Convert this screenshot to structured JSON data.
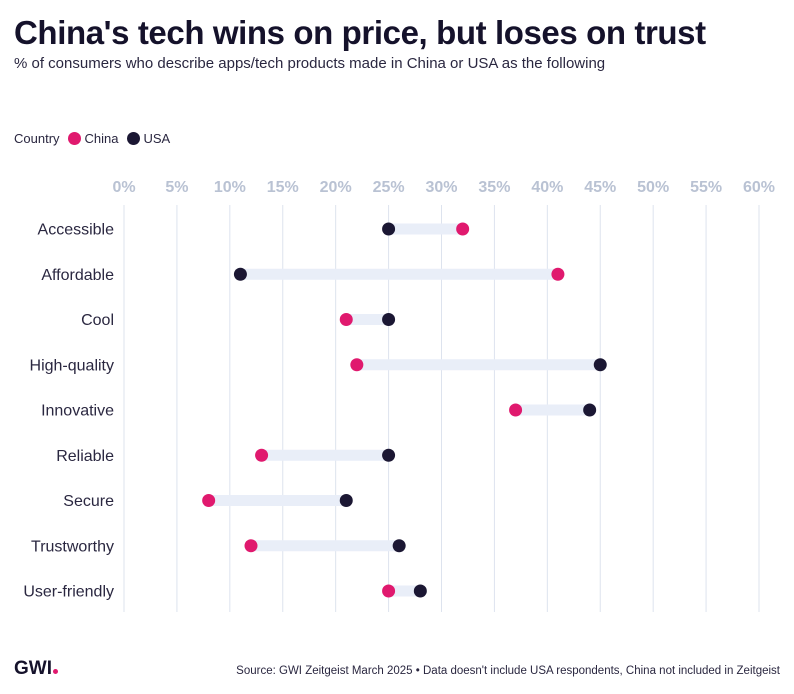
{
  "header": {
    "title": "China's tech wins on price, but loses on trust",
    "subtitle": "% of consumers who describe apps/tech products made in China or USA as the following"
  },
  "legend": {
    "label": "Country",
    "items": [
      {
        "name": "China",
        "color": "#e0196e"
      },
      {
        "name": "USA",
        "color": "#1b1733"
      }
    ]
  },
  "chart_data": {
    "type": "dumbbell",
    "title": "China's tech wins on price, but loses on trust",
    "xlabel": "",
    "ylabel": "",
    "xlim": [
      0,
      60
    ],
    "xticks": [
      "0%",
      "5%",
      "10%",
      "15%",
      "20%",
      "25%",
      "30%",
      "35%",
      "40%",
      "45%",
      "50%",
      "55%",
      "60%"
    ],
    "grid": true,
    "categories": [
      "Accessible",
      "Affordable",
      "Cool",
      "High-quality",
      "Innovative",
      "Reliable",
      "Secure",
      "Trustworthy",
      "User-friendly"
    ],
    "series": [
      {
        "name": "China",
        "color": "#e0196e",
        "values": [
          32,
          41,
          21,
          22,
          37,
          13,
          8,
          12,
          25
        ]
      },
      {
        "name": "USA",
        "color": "#1b1733",
        "values": [
          25,
          11,
          25,
          45,
          44,
          25,
          21,
          26,
          28
        ]
      }
    ],
    "range_color": "#e9eef8"
  },
  "footer": {
    "logo": "GWI",
    "source": "Source: GWI Zeitgeist March 2025 • Data doesn't include USA respondents, China not included in Zeitgeist"
  }
}
